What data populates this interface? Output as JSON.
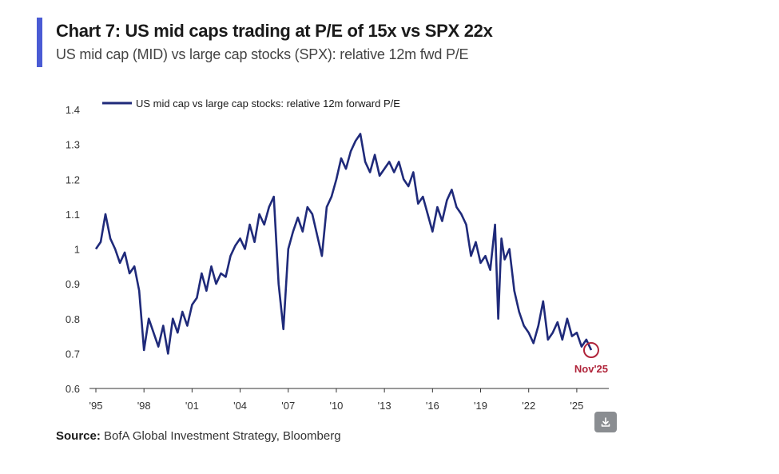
{
  "header": {
    "title": "Chart 7: US mid caps trading at P/E of 15x vs SPX 22x",
    "subtitle": "US mid cap (MID) vs large cap stocks (SPX): relative 12m fwd P/E"
  },
  "footer": {
    "source_label": "Source:",
    "source_text": " BofA Global Investment Strategy, Bloomberg"
  },
  "colors": {
    "accent": "#4a5bd4",
    "series": "#1f2a7a",
    "annotation": "#b0243a"
  },
  "chart_data": {
    "type": "line",
    "title": "US mid cap vs large cap stocks: relative 12m forward P/E",
    "xlabel": "",
    "ylabel": "",
    "ylim": [
      0.6,
      1.4
    ],
    "xlim": [
      1995,
      2026.5
    ],
    "grid": false,
    "legend_position": "top-left",
    "y_ticks": [
      "1.4",
      "1.3",
      "1.2",
      "1.1",
      "1",
      "0.9",
      "0.8",
      "0.7",
      "0.6"
    ],
    "x_ticks": [
      "'95",
      "'98",
      "'01",
      "'04",
      "'07",
      "'10",
      "'13",
      "'16",
      "'19",
      "'22",
      "'25"
    ],
    "series": [
      {
        "name": "US mid cap vs large cap stocks: relative 12m forward P/E",
        "x": [
          1995.0,
          1995.3,
          1995.6,
          1995.9,
          1996.2,
          1996.5,
          1996.8,
          1997.1,
          1997.4,
          1997.7,
          1998.0,
          1998.3,
          1998.6,
          1998.9,
          1999.2,
          1999.5,
          1999.8,
          2000.1,
          2000.4,
          2000.7,
          2001.0,
          2001.3,
          2001.6,
          2001.9,
          2002.2,
          2002.5,
          2002.8,
          2003.1,
          2003.4,
          2003.7,
          2004.0,
          2004.3,
          2004.6,
          2004.9,
          2005.2,
          2005.5,
          2005.8,
          2006.1,
          2006.4,
          2006.7,
          2007.0,
          2007.3,
          2007.6,
          2007.9,
          2008.2,
          2008.5,
          2008.8,
          2009.1,
          2009.4,
          2009.7,
          2010.0,
          2010.3,
          2010.6,
          2010.9,
          2011.2,
          2011.5,
          2011.8,
          2012.1,
          2012.4,
          2012.7,
          2013.0,
          2013.3,
          2013.6,
          2013.9,
          2014.2,
          2014.5,
          2014.8,
          2015.1,
          2015.4,
          2015.7,
          2016.0,
          2016.3,
          2016.6,
          2016.9,
          2017.2,
          2017.5,
          2017.8,
          2018.1,
          2018.4,
          2018.7,
          2019.0,
          2019.3,
          2019.6,
          2019.9,
          2020.1,
          2020.3,
          2020.5,
          2020.8,
          2021.1,
          2021.4,
          2021.7,
          2022.0,
          2022.3,
          2022.6,
          2022.9,
          2023.2,
          2023.5,
          2023.8,
          2024.1,
          2024.4,
          2024.7,
          2025.0,
          2025.3,
          2025.6,
          2025.9
        ],
        "values": [
          1.0,
          1.02,
          1.1,
          1.03,
          1.0,
          0.96,
          0.99,
          0.93,
          0.95,
          0.88,
          0.71,
          0.8,
          0.76,
          0.72,
          0.78,
          0.7,
          0.8,
          0.76,
          0.82,
          0.78,
          0.84,
          0.86,
          0.93,
          0.88,
          0.95,
          0.9,
          0.93,
          0.92,
          0.98,
          1.01,
          1.03,
          1.0,
          1.07,
          1.02,
          1.1,
          1.07,
          1.12,
          1.15,
          0.9,
          0.77,
          1.0,
          1.05,
          1.09,
          1.05,
          1.12,
          1.1,
          1.04,
          0.98,
          1.12,
          1.15,
          1.2,
          1.26,
          1.23,
          1.28,
          1.31,
          1.33,
          1.25,
          1.22,
          1.27,
          1.21,
          1.23,
          1.25,
          1.22,
          1.25,
          1.2,
          1.18,
          1.22,
          1.13,
          1.15,
          1.1,
          1.05,
          1.12,
          1.08,
          1.14,
          1.17,
          1.12,
          1.1,
          1.07,
          0.98,
          1.02,
          0.96,
          0.98,
          0.94,
          1.07,
          0.8,
          1.03,
          0.97,
          1.0,
          0.88,
          0.82,
          0.78,
          0.76,
          0.73,
          0.78,
          0.85,
          0.74,
          0.76,
          0.79,
          0.74,
          0.8,
          0.75,
          0.76,
          0.72,
          0.74,
          0.71
        ]
      }
    ],
    "annotations": [
      {
        "label": "Nov'25",
        "x": 2025.9,
        "y": 0.71
      }
    ]
  }
}
